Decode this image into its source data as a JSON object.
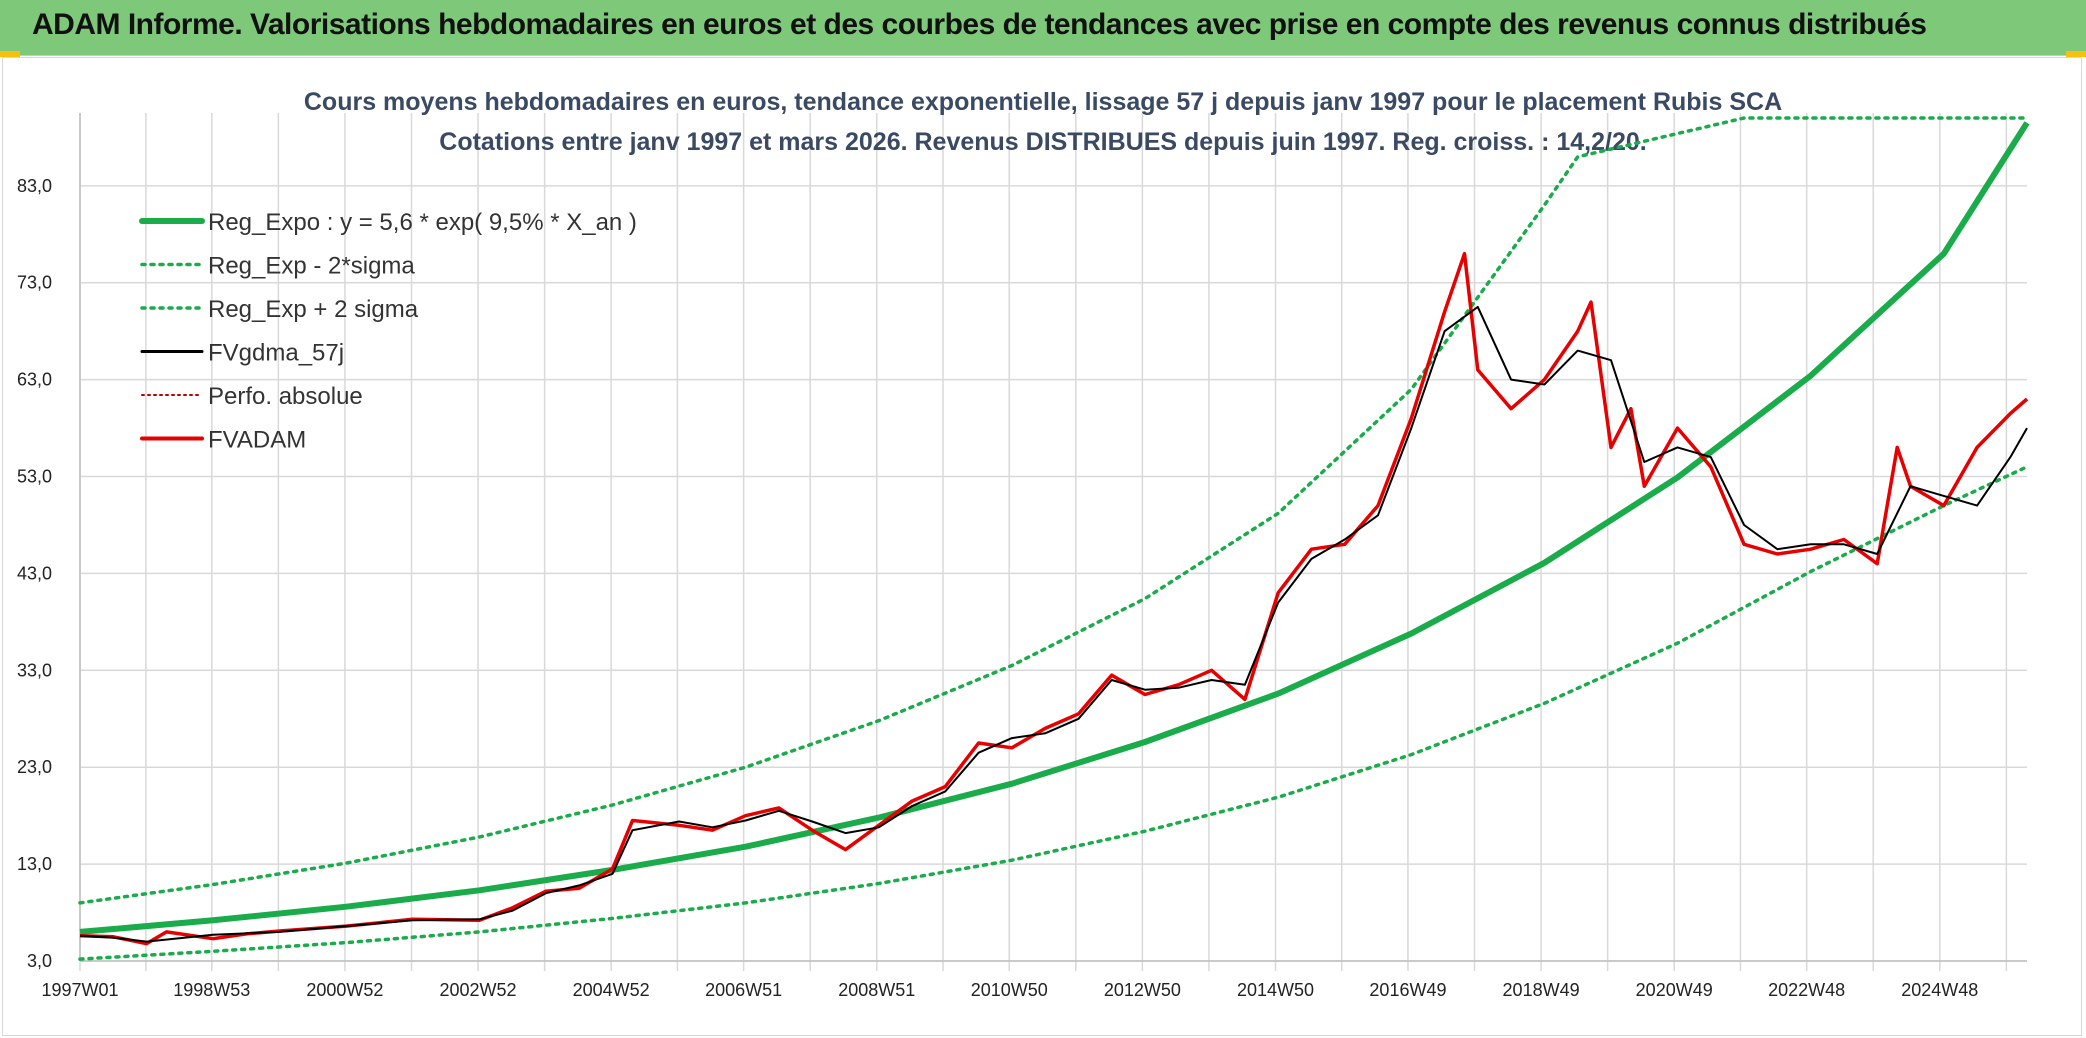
{
  "header": {
    "title": "ADAM Informe. Valorisations hebdomadaires en euros et des courbes de tendances avec prise en compte des revenus connus distribués"
  },
  "colors": {
    "banner": "#7ec87a",
    "trend": "#1aab4b",
    "adam": "#e80000",
    "gdma": "#000000",
    "perfo": "#c00000"
  },
  "chart_data": {
    "type": "line",
    "title": "Cours moyens hebdomadaires en euros, tendance exponentielle, lissage 57 j depuis janv 1997 pour le placement Rubis SCA",
    "subtitle": "Cotations entre janv 1997 et mars 2026. Revenus DISTRIBUES depuis juin 1997. Reg. croiss. : 14,2/20.",
    "xlabel": "",
    "ylabel": "",
    "xlim": [
      1997.0,
      2026.25
    ],
    "ylim": [
      3.0,
      90.0
    ],
    "y_ticks": [
      "3,0",
      "13,0",
      "23,0",
      "33,0",
      "43,0",
      "53,0",
      "63,0",
      "73,0",
      "83,0"
    ],
    "y_tick_values": [
      3,
      13,
      23,
      33,
      43,
      53,
      63,
      73,
      83
    ],
    "x_ticks": [
      "1997W01",
      "1998W53",
      "2000W52",
      "2002W52",
      "2004W52",
      "2006W51",
      "2008W51",
      "2010W50",
      "2012W50",
      "2014W50",
      "2016W49",
      "2018W49",
      "2020W49",
      "2022W48",
      "2024W48"
    ],
    "x_tick_values": [
      1997.0,
      1998.98,
      2000.98,
      2002.98,
      2004.98,
      2006.97,
      2008.97,
      2010.96,
      2012.96,
      2014.96,
      2016.95,
      2018.95,
      2020.95,
      2022.94,
      2024.94
    ],
    "grid": true,
    "legend_position": "top-left",
    "legend": [
      "Reg_Expo : y = 5,6 * exp( 9,5% *  X_an )",
      "Reg_Exp - 2*sigma",
      "Reg_Exp + 2 sigma",
      "FVgdma_57j",
      "Perfo. absolue",
      "FVADAM"
    ],
    "series": [
      {
        "name": "Reg_Expo : y = 5,6 * exp( 9,5% *  X_an )",
        "style": "solid-thick",
        "color": "#1aab4b",
        "x": [
          1997,
          1999,
          2001,
          2003,
          2005,
          2007,
          2009,
          2011,
          2013,
          2015,
          2017,
          2019,
          2021,
          2023,
          2025,
          2026.25
        ],
        "values": [
          6.0,
          7.2,
          8.6,
          10.3,
          12.4,
          14.8,
          17.8,
          21.3,
          25.6,
          30.6,
          36.8,
          44.1,
          52.9,
          63.4,
          76.0,
          89.5
        ]
      },
      {
        "name": "Reg_Exp - 2*sigma",
        "style": "dotted",
        "color": "#1aab4b",
        "x": [
          1997,
          1999,
          2001,
          2003,
          2005,
          2007,
          2009,
          2011,
          2013,
          2015,
          2017,
          2019,
          2021,
          2023,
          2025,
          2026.25
        ],
        "values": [
          3.2,
          4.0,
          4.9,
          6.0,
          7.4,
          9.0,
          11.0,
          13.4,
          16.4,
          19.9,
          24.3,
          29.6,
          35.8,
          43.2,
          50.0,
          54.0
        ]
      },
      {
        "name": "Reg_Exp + 2 sigma",
        "style": "dotted",
        "color": "#1aab4b",
        "x": [
          1997,
          1999,
          2001,
          2003,
          2005,
          2007,
          2009,
          2011,
          2013,
          2015,
          2017,
          2019,
          2019.5,
          2022,
          2024,
          2026.25
        ],
        "values": [
          9.0,
          10.9,
          13.1,
          15.8,
          19.1,
          23.0,
          27.8,
          33.5,
          40.4,
          49.2,
          62.0,
          81.0,
          86.0,
          90.0,
          90.0,
          90.0
        ]
      },
      {
        "name": "FVgdma_57j",
        "style": "solid",
        "color": "#000000",
        "x": [
          1997,
          1997.5,
          1998,
          1999,
          2000,
          2001,
          2002,
          2003,
          2003.5,
          2004,
          2004.5,
          2005,
          2005.3,
          2006,
          2006.5,
          2007,
          2007.5,
          2008,
          2008.5,
          2009,
          2009.5,
          2010,
          2010.5,
          2011,
          2011.5,
          2012,
          2012.5,
          2013,
          2013.5,
          2014,
          2014.5,
          2015,
          2015.5,
          2016,
          2016.5,
          2017,
          2017.5,
          2018,
          2018.5,
          2019,
          2019.5,
          2020,
          2020.5,
          2021,
          2021.5,
          2022,
          2022.5,
          2023,
          2023.5,
          2024,
          2024.5,
          2025,
          2025.5,
          2026,
          2026.25
        ],
        "values": [
          5.6,
          5.4,
          5.0,
          5.7,
          6.0,
          6.6,
          7.2,
          7.3,
          8.2,
          10.0,
          10.8,
          12.0,
          16.5,
          17.4,
          16.8,
          17.5,
          18.5,
          17.4,
          16.2,
          16.8,
          19.0,
          20.5,
          24.5,
          26.0,
          26.5,
          28.0,
          32.0,
          31.0,
          31.2,
          32.0,
          31.5,
          40.0,
          44.5,
          46.5,
          49.0,
          58.0,
          68.0,
          70.5,
          63.0,
          62.5,
          66.0,
          65.0,
          54.5,
          56.0,
          55.0,
          48.0,
          45.5,
          46.0,
          46.0,
          45.0,
          52.0,
          51.0,
          50.0,
          55.0,
          58.0
        ]
      },
      {
        "name": "FVADAM",
        "style": "solid-thick",
        "color": "#e80000",
        "x": [
          1997,
          1997.5,
          1998,
          1998.3,
          1999,
          1999.5,
          2000,
          2001,
          2002,
          2003,
          2003.5,
          2004,
          2004.5,
          2005,
          2005.3,
          2006,
          2006.5,
          2007,
          2007.5,
          2008,
          2008.5,
          2009,
          2009.5,
          2010,
          2010.5,
          2011,
          2011.5,
          2012,
          2012.5,
          2013,
          2013.5,
          2014,
          2014.5,
          2015,
          2015.5,
          2016,
          2016.5,
          2017,
          2017.5,
          2017.8,
          2018,
          2018.5,
          2019,
          2019.5,
          2019.7,
          2020,
          2020.3,
          2020.5,
          2021,
          2021.5,
          2022,
          2022.5,
          2023,
          2023.5,
          2024,
          2024.3,
          2024.5,
          2025,
          2025.5,
          2026,
          2026.25
        ],
        "values": [
          5.6,
          5.5,
          4.8,
          6.0,
          5.3,
          5.8,
          6.1,
          6.6,
          7.3,
          7.2,
          8.5,
          10.2,
          10.5,
          12.5,
          17.5,
          17.0,
          16.5,
          18.0,
          18.8,
          16.5,
          14.5,
          17.0,
          19.5,
          21.0,
          25.5,
          25.0,
          27.0,
          28.5,
          32.5,
          30.5,
          31.5,
          33.0,
          30.0,
          41.0,
          45.5,
          46.0,
          50.0,
          59.0,
          70.0,
          76.0,
          64.0,
          60.0,
          63.0,
          68.0,
          71.0,
          56.0,
          60.0,
          52.0,
          58.0,
          54.0,
          46.0,
          45.0,
          45.5,
          46.5,
          44.0,
          56.0,
          52.0,
          50.0,
          56.0,
          59.5,
          61.0
        ]
      }
    ]
  }
}
